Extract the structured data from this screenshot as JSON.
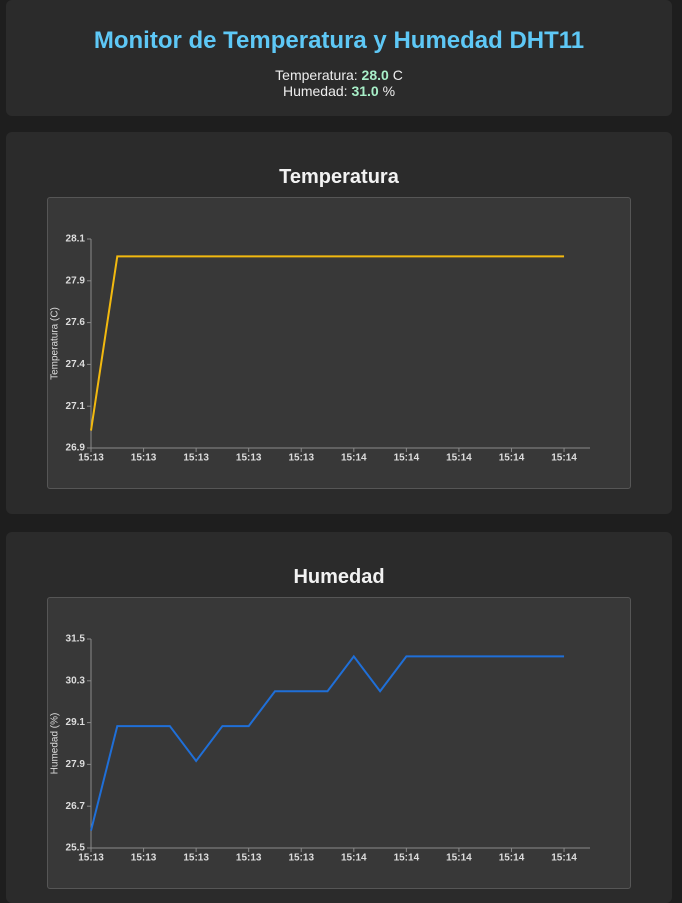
{
  "header": {
    "title": "Monitor de Temperatura y Humedad DHT11",
    "temperature": {
      "label": "Temperatura:",
      "value": "28.0",
      "unit": "C"
    },
    "humidity": {
      "label": "Humedad:",
      "value": "31.0",
      "unit": "%"
    }
  },
  "chart_data": [
    {
      "type": "line",
      "title": "Temperatura",
      "y_label": "Temperatura (C)",
      "categories": [
        "15:13",
        null,
        "15:13",
        null,
        "15:13",
        null,
        "15:13",
        null,
        "15:13",
        null,
        "15:14",
        null,
        "15:14",
        null,
        "15:14",
        null,
        "15:14",
        null,
        "15:14"
      ],
      "series": [
        {
          "color": "#f2b90f",
          "values": [
            27.0,
            28.0,
            28.0,
            28.0,
            28.0,
            28.0,
            28.0,
            28.0,
            28.0,
            28.0,
            28.0,
            28.0,
            28.0,
            28.0,
            28.0,
            28.0,
            28.0,
            28.0,
            28.0
          ]
        }
      ],
      "ylim": [
        26.9,
        28.1
      ],
      "yticks": [
        {
          "value": 26.9,
          "label": "26.9"
        },
        {
          "value": 27.14,
          "label": "27.1"
        },
        {
          "value": 27.38,
          "label": "27.4"
        },
        {
          "value": 27.62,
          "label": "27.6"
        },
        {
          "value": 27.86,
          "label": "27.9"
        },
        {
          "value": 28.1,
          "label": "28.1"
        }
      ]
    },
    {
      "type": "line",
      "title": "Humedad",
      "y_label": "Humedad (%)",
      "categories": [
        "15:13",
        null,
        "15:13",
        null,
        "15:13",
        null,
        "15:13",
        null,
        "15:13",
        null,
        "15:14",
        null,
        "15:14",
        null,
        "15:14",
        null,
        "15:14",
        null,
        "15:14"
      ],
      "series": [
        {
          "color": "#1f6fd8",
          "values": [
            26.0,
            29.0,
            29.0,
            29.0,
            28.0,
            29.0,
            29.0,
            30.0,
            30.0,
            30.0,
            31.0,
            30.0,
            31.0,
            31.0,
            31.0,
            31.0,
            31.0,
            31.0,
            31.0
          ]
        }
      ],
      "ylim": [
        25.5,
        31.5
      ],
      "yticks": [
        25.5,
        26.7,
        27.9,
        29.1,
        30.3,
        31.5
      ]
    }
  ]
}
